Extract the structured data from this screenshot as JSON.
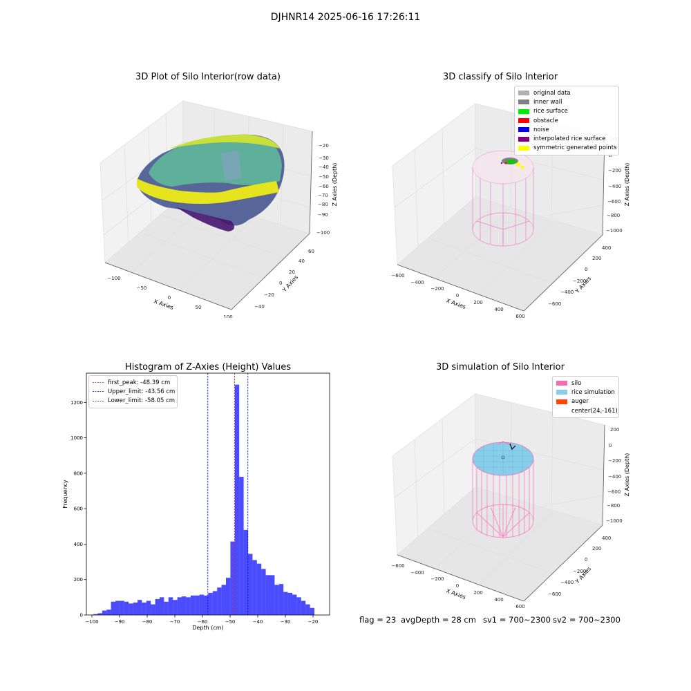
{
  "figure": {
    "title": "DJHNR14 2025-06-16 17:26:11"
  },
  "panels": {
    "raw": {
      "title": "3D Plot of Silo Interior(row data)",
      "xlabel": "X Axies",
      "ylabel": "Y Axies",
      "zlabel": "Z Axies (Depth)",
      "xticks": [
        "−100",
        "−50",
        "0",
        "50",
        "100"
      ],
      "yticks": [
        "−40",
        "−20",
        "0",
        "20",
        "40",
        "60"
      ],
      "zticks": [
        "−20",
        "−30",
        "−40",
        "−50",
        "−60",
        "−70",
        "−80",
        "−90",
        "−100"
      ]
    },
    "classify": {
      "title": "3D classify of Silo Interior",
      "xlabel": "X Axies",
      "ylabel": "Y Axies",
      "zlabel": "Z Axies (Depth)",
      "xticks": [
        "−600",
        "−400",
        "−200",
        "0",
        "200",
        "400",
        "600"
      ],
      "yticks": [
        "−600",
        "−400",
        "−200",
        "0",
        "200",
        "400"
      ],
      "zticks": [
        "200",
        "0",
        "−200",
        "−400",
        "−600",
        "−800",
        "−1000"
      ],
      "legend": [
        {
          "label": "original data",
          "color": "#b0b0b0"
        },
        {
          "label": "inner wall",
          "color": "#808080"
        },
        {
          "label": "rice surface",
          "color": "#00ee00"
        },
        {
          "label": "obstacle",
          "color": "#ff0000"
        },
        {
          "label": "noise",
          "color": "#0000ee"
        },
        {
          "label": "interpolated rice surface",
          "color": "#800080"
        },
        {
          "label": "symmetric generated points",
          "color": "#ffff00"
        }
      ]
    },
    "simulation": {
      "title": "3D simulation of Silo Interior",
      "xlabel": "X Axies",
      "ylabel": "Y Axies",
      "zlabel": "Z Axies (Depth)",
      "xticks": [
        "−600",
        "−400",
        "−200",
        "0",
        "200",
        "400",
        "600"
      ],
      "yticks": [
        "−600",
        "−400",
        "−200",
        "0",
        "200",
        "400"
      ],
      "zticks": [
        "200",
        "0",
        "−200",
        "−400",
        "−600",
        "−800",
        "−1000"
      ],
      "legend": [
        {
          "label": "silo",
          "color": "#ff69b4"
        },
        {
          "label": "rice simulation",
          "color": "#87ceeb"
        },
        {
          "label": "auger",
          "color": "#ff4500"
        },
        {
          "label": "center(24,-161)",
          "color": ""
        }
      ]
    }
  },
  "footer": {
    "flag": "flag = 23",
    "avg_depth": "avgDepth = 28 cm",
    "sv1": "sv1 = 700~2300",
    "sv2": "sv2 = 700~2300"
  },
  "chart_data": {
    "type": "bar",
    "title": "Histogram of Z-Axies (Height) Values",
    "xlabel": "Depth (cm)",
    "ylabel": "Frequency",
    "xlim": [
      -102,
      -14
    ],
    "ylim": [
      0,
      1365
    ],
    "xticks": [
      -100,
      -90,
      -80,
      -70,
      -60,
      -50,
      -40,
      -30,
      -20
    ],
    "yticks": [
      0,
      200,
      400,
      600,
      800,
      1000,
      1200
    ],
    "bin_start": -99.5,
    "bin_width": 1.6,
    "bar_color": "#0000ff",
    "values": [
      5,
      10,
      25,
      30,
      75,
      80,
      80,
      75,
      65,
      70,
      85,
      70,
      80,
      60,
      90,
      100,
      75,
      100,
      85,
      100,
      105,
      100,
      110,
      110,
      115,
      110,
      125,
      135,
      155,
      170,
      210,
      415,
      1300,
      780,
      480,
      345,
      310,
      290,
      260,
      225,
      225,
      170,
      175,
      130,
      125,
      115,
      100,
      80,
      60,
      40
    ],
    "vlines": [
      {
        "label": "first_peak: -48.39 cm",
        "x": -48.39,
        "color": "#ff0000"
      },
      {
        "label": "Upper_limit: -43.56 cm",
        "x": -43.56,
        "color": "#0000cc"
      },
      {
        "label": "Lower_limit: -58.05 cm",
        "x": -58.05,
        "color": "#0000cc"
      }
    ],
    "legend_position": "upper left"
  }
}
